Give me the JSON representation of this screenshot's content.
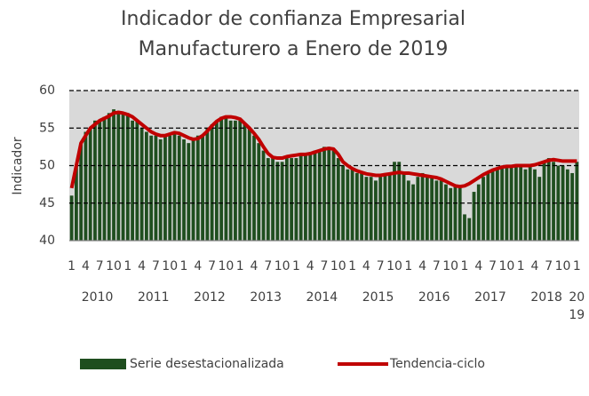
{
  "chart_data": {
    "type": "bar_line",
    "title_lines": [
      "Indicador de confianza Empresarial",
      "Manufacturero a Enero de 2019"
    ],
    "ylabel": "Indicador",
    "categories": [
      "1",
      null,
      null,
      "4",
      null,
      null,
      "7",
      null,
      null,
      "10",
      null,
      null,
      "1",
      null,
      null,
      "4",
      null,
      null,
      "7",
      null,
      null,
      "10",
      null,
      null,
      "1",
      null,
      null,
      "4",
      null,
      null,
      "7",
      null,
      null,
      "10",
      null,
      null,
      "1",
      null,
      null,
      "4",
      null,
      null,
      "7",
      null,
      null,
      "10",
      null,
      null,
      "1",
      null,
      null,
      "4",
      null,
      null,
      "7",
      null,
      null,
      "10",
      null,
      null,
      "1",
      null,
      null,
      "4",
      null,
      null,
      "7",
      null,
      null,
      "10",
      null,
      null,
      "1",
      null,
      null,
      "4",
      null,
      null,
      "7",
      null,
      null,
      "10",
      null,
      null,
      "1",
      null,
      null,
      "4",
      null,
      null,
      "7",
      null,
      null,
      "10",
      null,
      null,
      "1",
      null,
      null,
      "4",
      null,
      null,
      "7",
      null,
      null,
      "10",
      null,
      null,
      "1"
    ],
    "year_labels": [
      "2010",
      "2011",
      "2012",
      "2013",
      "2014",
      "2015",
      "2016",
      "2017",
      "2018",
      "2019"
    ],
    "series": [
      {
        "name": "Serie desestacionalizada",
        "kind": "bar",
        "color": "#1f4e1f",
        "values": [
          46,
          50,
          53,
          54.5,
          55,
          56,
          56,
          56.5,
          57,
          57.5,
          57,
          57,
          57,
          56,
          56,
          55,
          54.5,
          54,
          54,
          53.5,
          54,
          54,
          54.5,
          54,
          53.5,
          53,
          53.5,
          54,
          54,
          55,
          55.5,
          56,
          56.5,
          56.5,
          56,
          56,
          56,
          55.5,
          55,
          54,
          53,
          52,
          51,
          51,
          50.5,
          50.5,
          51,
          51,
          51,
          51.5,
          51.5,
          51.5,
          52,
          52,
          52.5,
          52.5,
          52,
          51,
          50,
          49.5,
          49.5,
          49,
          49,
          48.5,
          48.5,
          48,
          48.5,
          49,
          49,
          50.5,
          50.5,
          49,
          48,
          47.5,
          48.5,
          49,
          48.5,
          48.5,
          48,
          48,
          47.5,
          47,
          47.5,
          47,
          43.5,
          43,
          46.5,
          47.5,
          48.5,
          49,
          49.5,
          49.5,
          50,
          50,
          50,
          50,
          50,
          49.5,
          50,
          49.5,
          48.5,
          50.5,
          51,
          50.5,
          50,
          50,
          49.5,
          49,
          50.5
        ]
      },
      {
        "name": "Tendencia-ciclo",
        "kind": "line",
        "color": "#c00000",
        "values": [
          47,
          50,
          53,
          54,
          55,
          55.5,
          56,
          56.3,
          56.6,
          57,
          57.1,
          57,
          56.8,
          56.5,
          56,
          55.5,
          55,
          54.5,
          54.2,
          54,
          54,
          54.2,
          54.4,
          54.3,
          54,
          53.7,
          53.5,
          53.6,
          54,
          54.6,
          55.3,
          55.9,
          56.3,
          56.5,
          56.5,
          56.4,
          56.2,
          55.6,
          55,
          54.3,
          53.5,
          52.5,
          51.6,
          51.1,
          51,
          51,
          51.2,
          51.3,
          51.4,
          51.5,
          51.5,
          51.6,
          51.8,
          52,
          52.2,
          52.3,
          52.2,
          51.5,
          50.5,
          50,
          49.6,
          49.3,
          49.1,
          48.9,
          48.8,
          48.7,
          48.7,
          48.8,
          48.9,
          49,
          49.1,
          49,
          49,
          48.9,
          48.8,
          48.7,
          48.6,
          48.5,
          48.4,
          48.2,
          47.9,
          47.6,
          47.3,
          47.2,
          47.3,
          47.6,
          48,
          48.4,
          48.8,
          49.1,
          49.4,
          49.6,
          49.8,
          49.9,
          49.9,
          50,
          50,
          50,
          50,
          50.1,
          50.3,
          50.5,
          50.7,
          50.8,
          50.7,
          50.6,
          50.6,
          50.6,
          50.6
        ]
      }
    ],
    "ylim": [
      40,
      60
    ],
    "yticks": [
      40,
      45,
      50,
      55,
      60
    ],
    "grid": true
  }
}
